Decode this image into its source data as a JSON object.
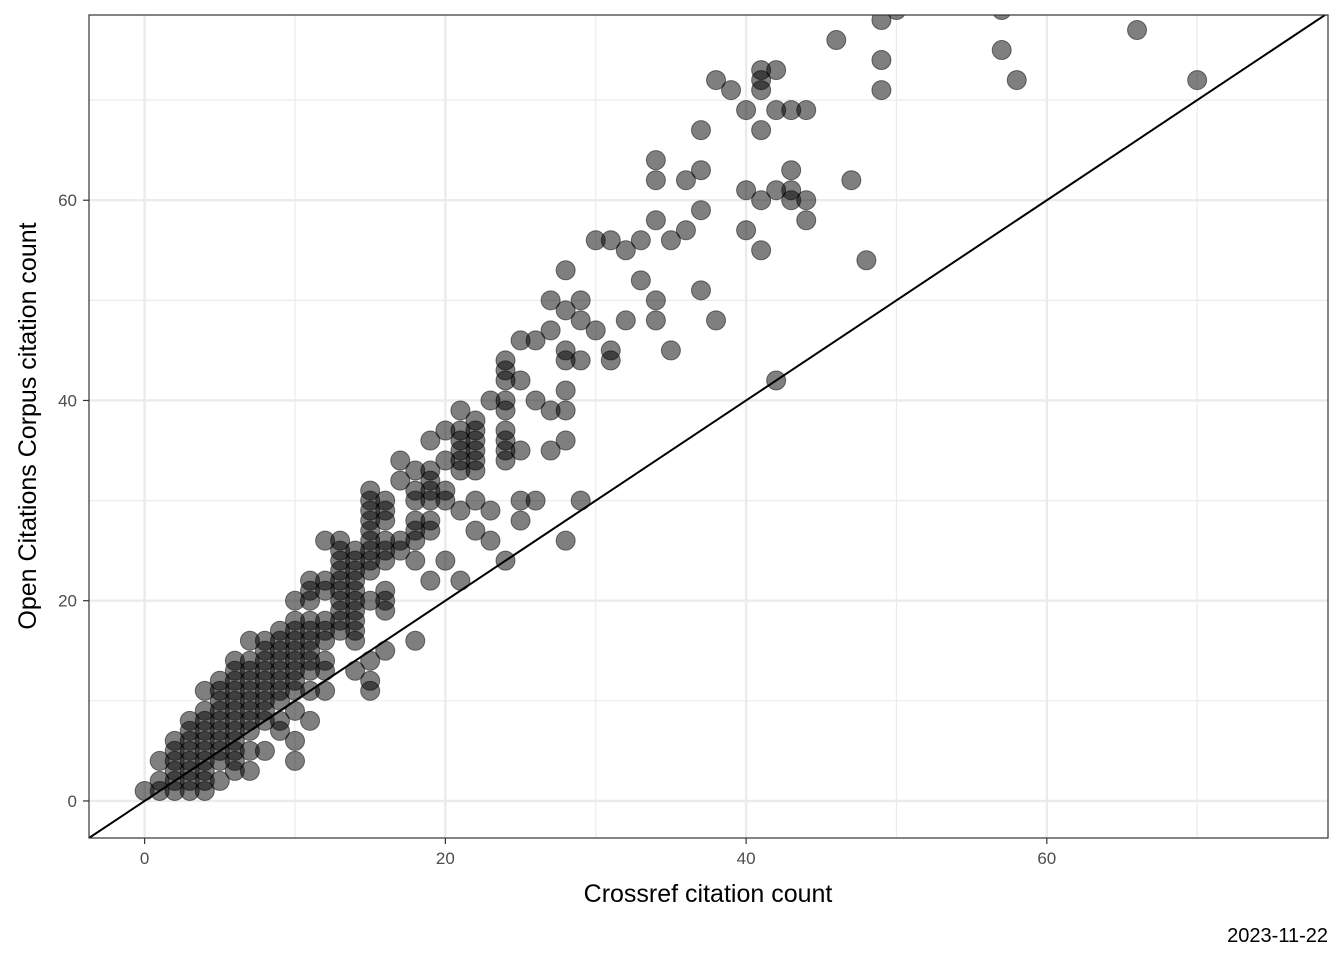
{
  "chart_data": {
    "type": "scatter",
    "title": "",
    "xlabel": "Crossref citation count",
    "ylabel": "Open Citations Corpus citation count",
    "caption": "2023-11-22",
    "xlim": [
      -3.7,
      78.7
    ],
    "ylim": [
      -3.7,
      78.5
    ],
    "x_ticks": [
      0,
      20,
      40,
      60
    ],
    "y_ticks": [
      0,
      20,
      40,
      60
    ],
    "grid": true,
    "reference_line": {
      "type": "identity",
      "label": "y = x"
    },
    "point_color": "#000000",
    "point_opacity": 0.5,
    "points": [
      [
        0,
        1
      ],
      [
        1,
        1
      ],
      [
        1,
        2
      ],
      [
        1,
        4
      ],
      [
        2,
        1
      ],
      [
        2,
        2
      ],
      [
        2,
        3
      ],
      [
        2,
        4
      ],
      [
        2,
        5
      ],
      [
        2,
        6
      ],
      [
        3,
        1
      ],
      [
        3,
        2
      ],
      [
        3,
        3
      ],
      [
        3,
        4
      ],
      [
        3,
        5
      ],
      [
        3,
        6
      ],
      [
        3,
        7
      ],
      [
        3,
        8
      ],
      [
        4,
        1
      ],
      [
        4,
        2
      ],
      [
        4,
        3
      ],
      [
        4,
        4
      ],
      [
        4,
        5
      ],
      [
        4,
        6
      ],
      [
        4,
        7
      ],
      [
        4,
        8
      ],
      [
        4,
        9
      ],
      [
        4,
        11
      ],
      [
        5,
        2
      ],
      [
        5,
        4
      ],
      [
        5,
        5
      ],
      [
        5,
        6
      ],
      [
        5,
        7
      ],
      [
        5,
        8
      ],
      [
        5,
        9
      ],
      [
        5,
        10
      ],
      [
        5,
        11
      ],
      [
        5,
        12
      ],
      [
        6,
        3
      ],
      [
        6,
        4
      ],
      [
        6,
        5
      ],
      [
        6,
        6
      ],
      [
        6,
        7
      ],
      [
        6,
        8
      ],
      [
        6,
        9
      ],
      [
        6,
        10
      ],
      [
        6,
        11
      ],
      [
        6,
        12
      ],
      [
        6,
        13
      ],
      [
        6,
        14
      ],
      [
        7,
        3
      ],
      [
        7,
        5
      ],
      [
        7,
        7
      ],
      [
        7,
        8
      ],
      [
        7,
        9
      ],
      [
        7,
        10
      ],
      [
        7,
        11
      ],
      [
        7,
        12
      ],
      [
        7,
        13
      ],
      [
        7,
        14
      ],
      [
        7,
        16
      ],
      [
        8,
        5
      ],
      [
        8,
        8
      ],
      [
        8,
        9
      ],
      [
        8,
        10
      ],
      [
        8,
        11
      ],
      [
        8,
        12
      ],
      [
        8,
        13
      ],
      [
        8,
        14
      ],
      [
        8,
        15
      ],
      [
        8,
        16
      ],
      [
        9,
        7
      ],
      [
        9,
        8
      ],
      [
        9,
        10
      ],
      [
        9,
        11
      ],
      [
        9,
        12
      ],
      [
        9,
        13
      ],
      [
        9,
        14
      ],
      [
        9,
        15
      ],
      [
        9,
        16
      ],
      [
        9,
        17
      ],
      [
        10,
        4
      ],
      [
        10,
        6
      ],
      [
        10,
        9
      ],
      [
        10,
        11
      ],
      [
        10,
        12
      ],
      [
        10,
        13
      ],
      [
        10,
        14
      ],
      [
        10,
        15
      ],
      [
        10,
        16
      ],
      [
        10,
        17
      ],
      [
        10,
        18
      ],
      [
        10,
        20
      ],
      [
        11,
        8
      ],
      [
        11,
        11
      ],
      [
        11,
        13
      ],
      [
        11,
        14
      ],
      [
        11,
        15
      ],
      [
        11,
        16
      ],
      [
        11,
        17
      ],
      [
        11,
        18
      ],
      [
        11,
        20
      ],
      [
        11,
        21
      ],
      [
        11,
        22
      ],
      [
        12,
        11
      ],
      [
        12,
        13
      ],
      [
        12,
        14
      ],
      [
        12,
        16
      ],
      [
        12,
        17
      ],
      [
        12,
        18
      ],
      [
        12,
        21
      ],
      [
        12,
        22
      ],
      [
        12,
        26
      ],
      [
        13,
        17
      ],
      [
        13,
        18
      ],
      [
        13,
        19
      ],
      [
        13,
        20
      ],
      [
        13,
        21
      ],
      [
        13,
        22
      ],
      [
        13,
        23
      ],
      [
        13,
        24
      ],
      [
        13,
        25
      ],
      [
        13,
        26
      ],
      [
        14,
        13
      ],
      [
        14,
        16
      ],
      [
        14,
        17
      ],
      [
        14,
        18
      ],
      [
        14,
        19
      ],
      [
        14,
        20
      ],
      [
        14,
        21
      ],
      [
        14,
        22
      ],
      [
        14,
        23
      ],
      [
        14,
        24
      ],
      [
        14,
        25
      ],
      [
        15,
        11
      ],
      [
        15,
        12
      ],
      [
        15,
        14
      ],
      [
        15,
        20
      ],
      [
        15,
        23
      ],
      [
        15,
        24
      ],
      [
        15,
        25
      ],
      [
        15,
        26
      ],
      [
        15,
        27
      ],
      [
        15,
        28
      ],
      [
        15,
        29
      ],
      [
        15,
        30
      ],
      [
        15,
        31
      ],
      [
        16,
        15
      ],
      [
        16,
        19
      ],
      [
        16,
        20
      ],
      [
        16,
        21
      ],
      [
        16,
        24
      ],
      [
        16,
        25
      ],
      [
        16,
        26
      ],
      [
        16,
        28
      ],
      [
        16,
        29
      ],
      [
        16,
        30
      ],
      [
        17,
        25
      ],
      [
        17,
        26
      ],
      [
        17,
        32
      ],
      [
        17,
        34
      ],
      [
        18,
        16
      ],
      [
        18,
        24
      ],
      [
        18,
        26
      ],
      [
        18,
        27
      ],
      [
        18,
        28
      ],
      [
        18,
        30
      ],
      [
        18,
        31
      ],
      [
        18,
        33
      ],
      [
        19,
        22
      ],
      [
        19,
        27
      ],
      [
        19,
        28
      ],
      [
        19,
        30
      ],
      [
        19,
        31
      ],
      [
        19,
        32
      ],
      [
        19,
        33
      ],
      [
        19,
        36
      ],
      [
        20,
        24
      ],
      [
        20,
        30
      ],
      [
        20,
        31
      ],
      [
        20,
        34
      ],
      [
        20,
        37
      ],
      [
        21,
        22
      ],
      [
        21,
        29
      ],
      [
        21,
        33
      ],
      [
        21,
        34
      ],
      [
        21,
        35
      ],
      [
        21,
        36
      ],
      [
        21,
        37
      ],
      [
        21,
        39
      ],
      [
        22,
        27
      ],
      [
        22,
        30
      ],
      [
        22,
        33
      ],
      [
        22,
        34
      ],
      [
        22,
        35
      ],
      [
        22,
        36
      ],
      [
        22,
        37
      ],
      [
        22,
        38
      ],
      [
        23,
        26
      ],
      [
        23,
        29
      ],
      [
        23,
        40
      ],
      [
        24,
        24
      ],
      [
        24,
        34
      ],
      [
        24,
        35
      ],
      [
        24,
        36
      ],
      [
        24,
        37
      ],
      [
        24,
        39
      ],
      [
        24,
        40
      ],
      [
        24,
        42
      ],
      [
        24,
        43
      ],
      [
        24,
        44
      ],
      [
        25,
        28
      ],
      [
        25,
        30
      ],
      [
        25,
        35
      ],
      [
        25,
        42
      ],
      [
        25,
        46
      ],
      [
        26,
        30
      ],
      [
        26,
        40
      ],
      [
        26,
        46
      ],
      [
        27,
        35
      ],
      [
        27,
        39
      ],
      [
        27,
        47
      ],
      [
        27,
        50
      ],
      [
        28,
        26
      ],
      [
        28,
        36
      ],
      [
        28,
        39
      ],
      [
        28,
        41
      ],
      [
        28,
        44
      ],
      [
        28,
        45
      ],
      [
        28,
        49
      ],
      [
        28,
        53
      ],
      [
        29,
        30
      ],
      [
        29,
        44
      ],
      [
        29,
        48
      ],
      [
        29,
        50
      ],
      [
        30,
        47
      ],
      [
        30,
        56
      ],
      [
        31,
        44
      ],
      [
        31,
        45
      ],
      [
        31,
        56
      ],
      [
        32,
        48
      ],
      [
        32,
        55
      ],
      [
        33,
        52
      ],
      [
        33,
        56
      ],
      [
        34,
        48
      ],
      [
        34,
        50
      ],
      [
        34,
        58
      ],
      [
        34,
        62
      ],
      [
        34,
        64
      ],
      [
        35,
        45
      ],
      [
        35,
        56
      ],
      [
        36,
        57
      ],
      [
        36,
        62
      ],
      [
        37,
        51
      ],
      [
        37,
        59
      ],
      [
        37,
        63
      ],
      [
        37,
        67
      ],
      [
        38,
        48
      ],
      [
        38,
        72
      ],
      [
        39,
        71
      ],
      [
        40,
        57
      ],
      [
        40,
        61
      ],
      [
        40,
        69
      ],
      [
        41,
        55
      ],
      [
        41,
        60
      ],
      [
        41,
        67
      ],
      [
        41,
        71
      ],
      [
        41,
        72
      ],
      [
        41,
        73
      ],
      [
        42,
        42
      ],
      [
        42,
        61
      ],
      [
        42,
        69
      ],
      [
        42,
        73
      ],
      [
        43,
        60
      ],
      [
        43,
        61
      ],
      [
        43,
        63
      ],
      [
        43,
        69
      ],
      [
        44,
        58
      ],
      [
        44,
        60
      ],
      [
        44,
        69
      ],
      [
        46,
        76
      ],
      [
        47,
        62
      ],
      [
        48,
        54
      ],
      [
        49,
        71
      ],
      [
        49,
        74
      ],
      [
        49,
        78
      ],
      [
        50,
        79
      ],
      [
        57,
        75
      ],
      [
        57,
        79
      ],
      [
        58,
        72
      ],
      [
        66,
        77
      ],
      [
        70,
        72
      ]
    ]
  }
}
